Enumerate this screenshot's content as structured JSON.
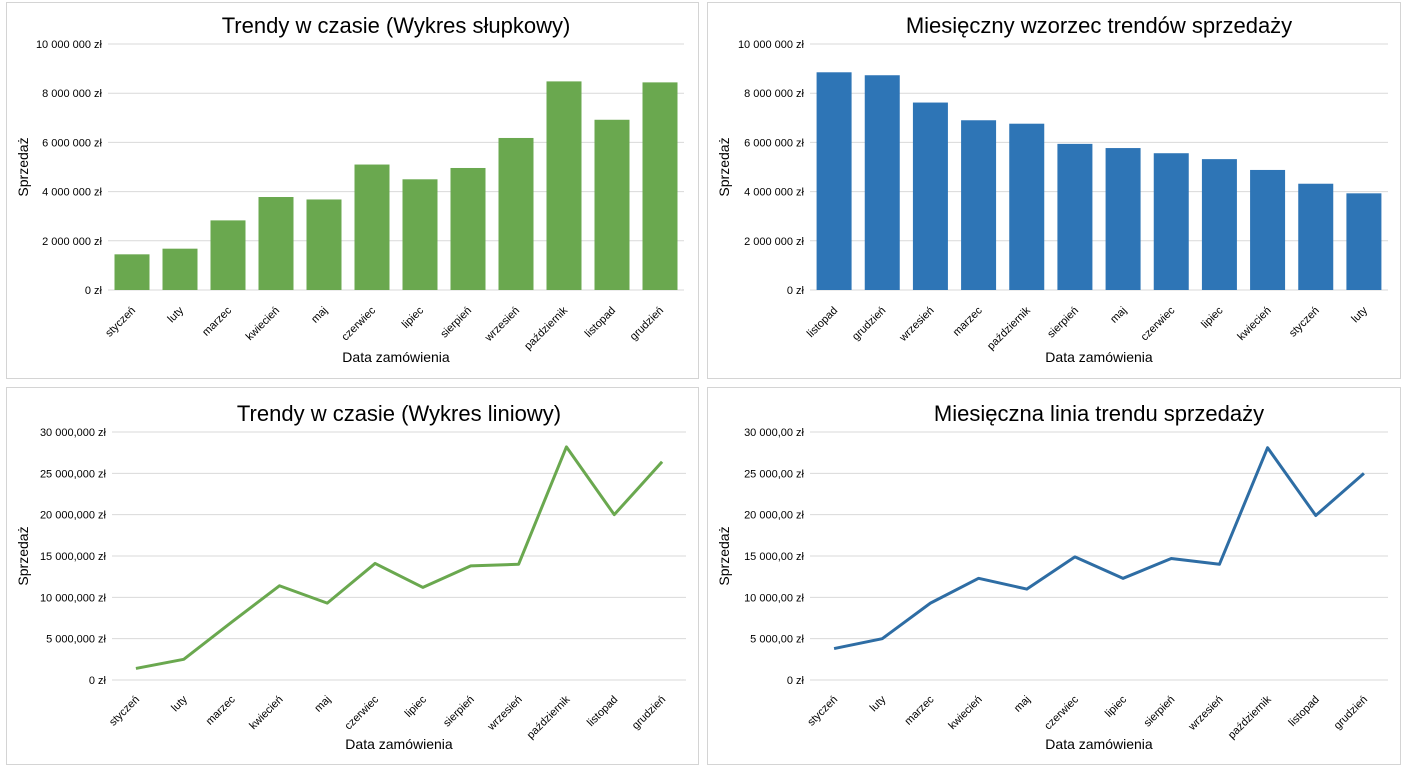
{
  "chart_data": [
    {
      "id": "c1",
      "type": "bar",
      "title": "Trendy w czasie (Wykres słupkowy)",
      "xlabel": "Data zamówienia",
      "ylabel": "Sprzedaż",
      "ylim": [
        0,
        10000000
      ],
      "y_ticks": [
        {
          "value": 0,
          "label": "0 zł"
        },
        {
          "value": 2000000,
          "label": "2 000 000 zł"
        },
        {
          "value": 4000000,
          "label": "4 000 000 zł"
        },
        {
          "value": 6000000,
          "label": "6 000 000 zł"
        },
        {
          "value": 8000000,
          "label": "8 000 000 zł"
        },
        {
          "value": 10000000,
          "label": "10 000 000 zł"
        }
      ],
      "categories": [
        "styczeń",
        "luty",
        "marzec",
        "kwiecień",
        "maj",
        "czerwiec",
        "lipiec",
        "sierpień",
        "wrzesień",
        "październik",
        "listopad",
        "grudzień"
      ],
      "values": [
        1450000,
        1680000,
        2830000,
        3780000,
        3680000,
        5100000,
        4500000,
        4960000,
        6180000,
        8480000,
        6920000,
        8440000
      ],
      "color": "#6aa84f",
      "grid": true,
      "legend": "none"
    },
    {
      "id": "c2",
      "type": "bar",
      "title": "Miesięczny wzorzec trendów sprzedaży",
      "xlabel": "Data zamówienia",
      "ylabel": "Sprzedaż",
      "ylim": [
        0,
        10000000
      ],
      "y_ticks": [
        {
          "value": 0,
          "label": "0 zł"
        },
        {
          "value": 2000000,
          "label": "2 000 000 zł"
        },
        {
          "value": 4000000,
          "label": "4 000 000 zł"
        },
        {
          "value": 6000000,
          "label": "6 000 000 zł"
        },
        {
          "value": 8000000,
          "label": "8 000 000 zł"
        },
        {
          "value": 10000000,
          "label": "10 000 000 zł"
        }
      ],
      "categories": [
        "listopad",
        "grudzień",
        "wrzesień",
        "marzec",
        "październik",
        "sierpień",
        "maj",
        "czerwiec",
        "lipiec",
        "kwiecień",
        "styczeń",
        "luty"
      ],
      "values": [
        8850000,
        8730000,
        7620000,
        6900000,
        6760000,
        5940000,
        5770000,
        5560000,
        5320000,
        4880000,
        4320000,
        3930000
      ],
      "color": "#2e75b6",
      "grid": true,
      "legend": "none"
    },
    {
      "id": "c3",
      "type": "line",
      "title": "Trendy w czasie (Wykres liniowy)",
      "xlabel": "Data zamówienia",
      "ylabel": "Sprzedaż",
      "ylim": [
        0,
        30000000
      ],
      "y_ticks": [
        {
          "value": 0,
          "label": "0 zł"
        },
        {
          "value": 5000000,
          "label": "5 000,000 zł"
        },
        {
          "value": 10000000,
          "label": "10 000,000 zł"
        },
        {
          "value": 15000000,
          "label": "15 000,000 zł"
        },
        {
          "value": 20000000,
          "label": "20 000,000 zł"
        },
        {
          "value": 25000000,
          "label": "25 000,000 zł"
        },
        {
          "value": 30000000,
          "label": "30 000,000 zł"
        }
      ],
      "categories": [
        "styczeń",
        "luty",
        "marzec",
        "kwiecień",
        "maj",
        "czerwiec",
        "lipiec",
        "sierpień",
        "wrzesień",
        "październik",
        "listopad",
        "grudzień"
      ],
      "values": [
        1400000,
        2500000,
        7000000,
        11400000,
        9300000,
        14100000,
        11200000,
        13800000,
        14000000,
        28200000,
        20000000,
        26400000
      ],
      "color": "#6aa84f",
      "grid": true,
      "legend": "none"
    },
    {
      "id": "c4",
      "type": "line",
      "title": "Miesięczna linia trendu sprzedaży",
      "xlabel": "Data zamówienia",
      "ylabel": "Sprzedaż",
      "ylim": [
        0,
        30000
      ],
      "y_ticks": [
        {
          "value": 0,
          "label": "0 zł"
        },
        {
          "value": 5000,
          "label": "5 000,00 zł"
        },
        {
          "value": 10000,
          "label": "10 000,00 zł"
        },
        {
          "value": 15000,
          "label": "15 000,00 zł"
        },
        {
          "value": 20000,
          "label": "20 000,00 zł"
        },
        {
          "value": 25000,
          "label": "25 000,00 zł"
        },
        {
          "value": 30000,
          "label": "30 000,00 zł"
        }
      ],
      "categories": [
        "styczeń",
        "luty",
        "marzec",
        "kwiecień",
        "maj",
        "czerwiec",
        "lipiec",
        "sierpień",
        "wrzesień",
        "październik",
        "listopad",
        "grudzień"
      ],
      "values": [
        3800,
        5000,
        9300,
        12300,
        11000,
        14900,
        12300,
        14700,
        14000,
        28100,
        19900,
        25000
      ],
      "color": "#2e6da4",
      "grid": true,
      "legend": "none"
    }
  ]
}
